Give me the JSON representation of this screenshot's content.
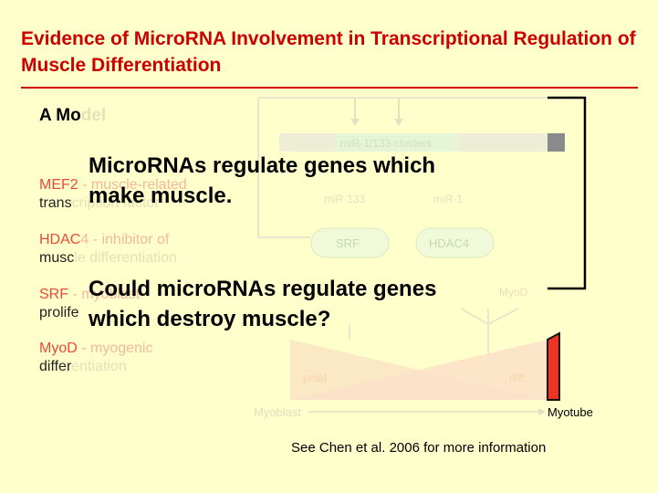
{
  "slide": {
    "title": "Evidence of MicroRNA Involvement in Transcriptional Regulation of Muscle Differentiation",
    "model_label_visible": "A Mo",
    "model_label_faded": "del"
  },
  "legend": [
    {
      "name_visible": "MEF2",
      "desc_line1": " - muscle-related",
      "line2_visible": "trans",
      "line2_faded": "cription factor"
    },
    {
      "name_visible": "HDAC",
      "name_faded": "4",
      "desc_line1": " - inhibitor of",
      "line2_visible": "musc",
      "line2_faded": "le differentiation"
    },
    {
      "name_visible": "SRF",
      "desc_line1": " - myoblast",
      "line2_visible": "prolife",
      "line2_faded": ""
    },
    {
      "name_visible": "MyoD",
      "desc_line1": " - myogenic",
      "line2_visible": "differ",
      "line2_faded": "entiation"
    }
  ],
  "diagram": {
    "clusters": "miR-1/133 clusters",
    "mir133": "miR-133",
    "mir1": "miR-1",
    "srf": "SRF",
    "hdac4": "HDAC4",
    "myod": "MyoD",
    "prolif": "prolif.",
    "diff": "diff.",
    "myoblast": "Myoblast",
    "myotube": "Myotube"
  },
  "overlay": {
    "line1a": "MicroRNAs regulate genes which",
    "line1b": "make muscle.",
    "line2a": "Could microRNAs regulate genes",
    "line2b": "which destroy muscle?"
  },
  "footer": "See Chen et al. 2006 for more information",
  "colors": {
    "title": "#cc0000",
    "background": "#ffffcc",
    "accent_red": "#ee3322"
  }
}
